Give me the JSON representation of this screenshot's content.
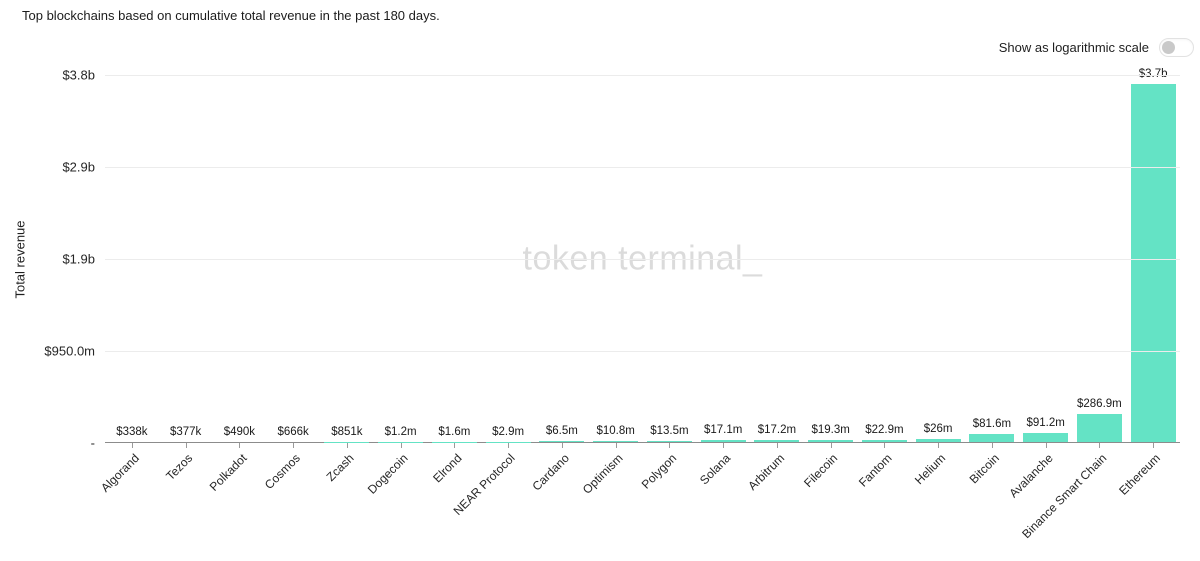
{
  "toggle": {
    "label": "Show as logarithmic scale",
    "state": "off"
  },
  "chart_data": {
    "type": "bar",
    "title": "Top blockchains based on cumulative total revenue in the past 180 days.",
    "xlabel": "",
    "ylabel": "Total revenue",
    "watermark": "token terminal_",
    "bar_color": "#64e3c5",
    "grid": true,
    "ylim": [
      0,
      3800000000
    ],
    "y_ticks": [
      {
        "value": 3800000000,
        "label": "$3.8b"
      },
      {
        "value": 2850000000,
        "label": "$2.9b"
      },
      {
        "value": 1900000000,
        "label": "$1.9b"
      },
      {
        "value": 950000000,
        "label": "$950.0m"
      },
      {
        "value": 0,
        "label": "-"
      }
    ],
    "categories": [
      "Algorand",
      "Tezos",
      "Polkadot",
      "Cosmos",
      "Zcash",
      "Dogecoin",
      "Elrond",
      "NEAR Protocol",
      "Cardano",
      "Optimism",
      "Polygon",
      "Solana",
      "Arbitrum",
      "Filecoin",
      "Fantom",
      "Helium",
      "Bitcoin",
      "Avalanche",
      "Binance Smart Chain",
      "Ethereum"
    ],
    "values": [
      338000,
      377000,
      490000,
      666000,
      851000,
      1200000,
      1600000,
      2900000,
      6500000,
      10800000,
      13500000,
      17100000,
      17200000,
      19300000,
      22900000,
      26000000,
      81600000,
      91200000,
      286900000,
      3700000000
    ],
    "value_labels": [
      "$338k",
      "$377k",
      "$490k",
      "$666k",
      "$851k",
      "$1.2m",
      "$1.6m",
      "$2.9m",
      "$6.5m",
      "$10.8m",
      "$13.5m",
      "$17.1m",
      "$17.2m",
      "$19.3m",
      "$22.9m",
      "$26m",
      "$81.6m",
      "$91.2m",
      "$286.9m",
      "$3.7b"
    ]
  }
}
